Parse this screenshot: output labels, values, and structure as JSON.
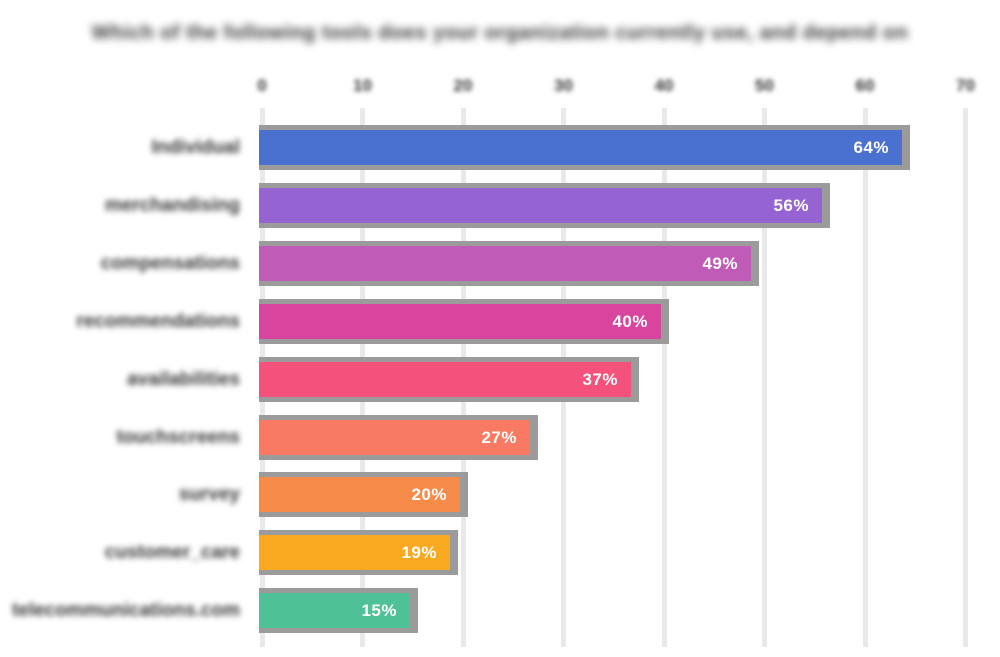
{
  "title": {
    "text": "Which of the following tools does your organization currently use, and depend on",
    "redacted": true
  },
  "chart_data": {
    "type": "bar",
    "orientation": "horizontal",
    "title": "Which of the following tools does your organization currently use, and depend on",
    "title_redacted": true,
    "categories": [
      "Individual",
      "merchandising",
      "compensations",
      "recommendations",
      "availabilities",
      "touchscreens",
      "survey",
      "customer_care",
      "telecommunications.com"
    ],
    "categories_redacted": true,
    "values": [
      64,
      56,
      49,
      40,
      37,
      27,
      20,
      19,
      15
    ],
    "value_labels": [
      "64%",
      "56%",
      "49%",
      "40%",
      "37%",
      "27%",
      "20%",
      "19%",
      "15%"
    ],
    "bar_colors": [
      "#4a70d0",
      "#9663d2",
      "#c05cb8",
      "#d9449e",
      "#f4517c",
      "#f87a62",
      "#f78c4a",
      "#f9a91f",
      "#4ec296"
    ],
    "x_ticks": [
      "0",
      "10",
      "20",
      "30",
      "40",
      "50",
      "60",
      "70"
    ],
    "x_ticks_redacted": true,
    "xlim": [
      0,
      70
    ],
    "grid": true,
    "legend": false,
    "xlabel": "",
    "ylabel": ""
  },
  "style": {
    "background": "#ffffff",
    "text_color": "#383838",
    "grid_color": "#e9e9e9",
    "shadow_color": "#9b9b9b",
    "value_label_color": "#ffffff"
  }
}
